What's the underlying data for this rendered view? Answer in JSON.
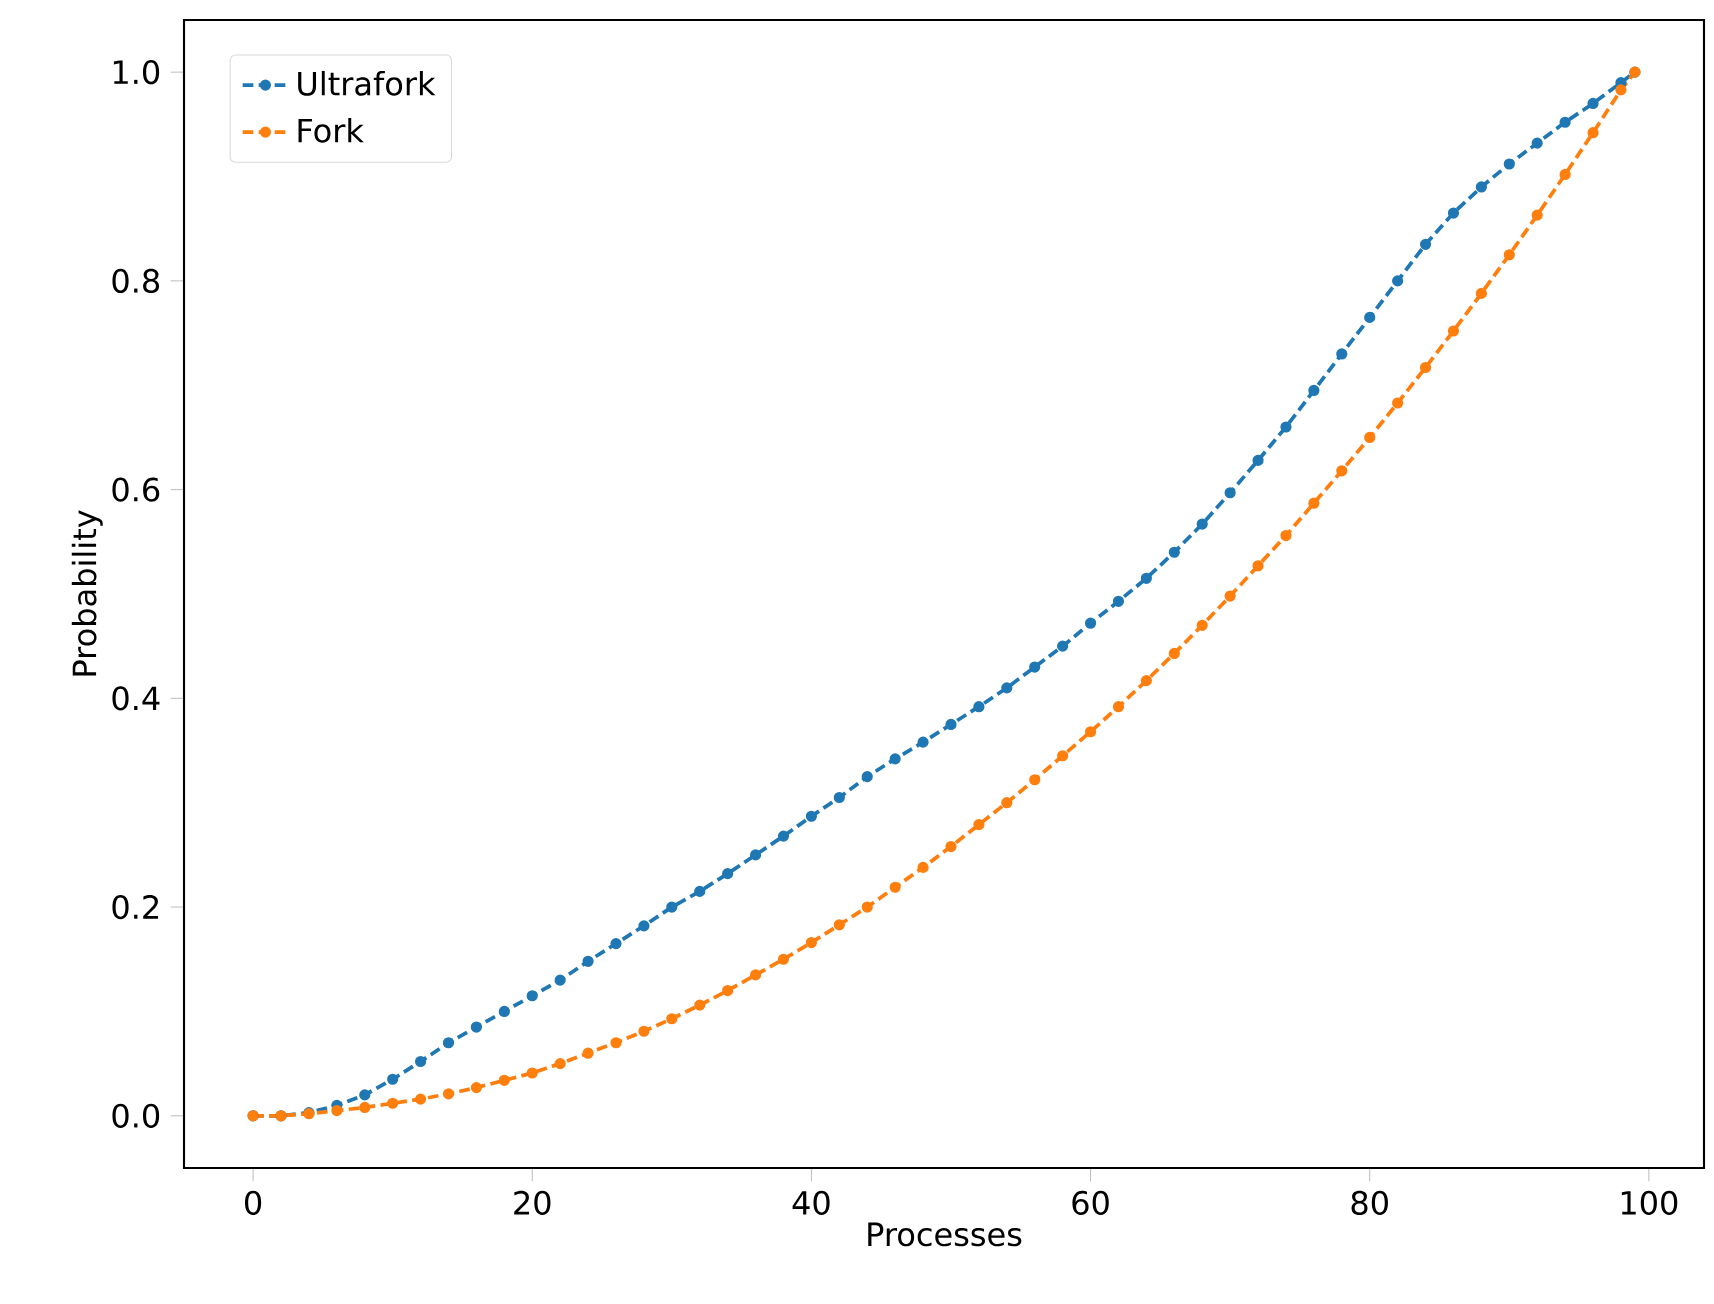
{
  "chart_data": {
    "type": "line",
    "xlabel": "Processes",
    "ylabel": "Probability",
    "x": [
      0,
      2,
      4,
      6,
      8,
      10,
      12,
      14,
      16,
      18,
      20,
      22,
      24,
      26,
      28,
      30,
      32,
      34,
      36,
      38,
      40,
      42,
      44,
      46,
      48,
      50,
      52,
      54,
      56,
      58,
      60,
      62,
      64,
      66,
      68,
      70,
      72,
      74,
      76,
      78,
      80,
      82,
      84,
      86,
      88,
      90,
      92,
      94,
      96,
      98,
      99
    ],
    "series": [
      {
        "name": "Ultrafork",
        "color": "#1f77b4",
        "values": [
          0,
          0,
          0.003,
          0.01,
          0.02,
          0.035,
          0.052,
          0.07,
          0.085,
          0.1,
          0.115,
          0.13,
          0.148,
          0.165,
          0.182,
          0.2,
          0.215,
          0.232,
          0.25,
          0.268,
          0.287,
          0.305,
          0.325,
          0.342,
          0.358,
          0.375,
          0.392,
          0.41,
          0.43,
          0.45,
          0.472,
          0.493,
          0.515,
          0.54,
          0.567,
          0.597,
          0.628,
          0.66,
          0.695,
          0.73,
          0.765,
          0.8,
          0.835,
          0.865,
          0.89,
          0.912,
          0.932,
          0.952,
          0.97,
          0.99,
          1.0
        ]
      },
      {
        "name": "Fork",
        "color": "#ff7f0e",
        "values": [
          0,
          0,
          0.002,
          0.005,
          0.008,
          0.012,
          0.016,
          0.021,
          0.027,
          0.034,
          0.041,
          0.05,
          0.06,
          0.07,
          0.081,
          0.093,
          0.106,
          0.12,
          0.135,
          0.15,
          0.166,
          0.183,
          0.2,
          0.219,
          0.238,
          0.258,
          0.279,
          0.3,
          0.322,
          0.345,
          0.368,
          0.392,
          0.417,
          0.443,
          0.47,
          0.498,
          0.527,
          0.556,
          0.587,
          0.618,
          0.65,
          0.683,
          0.717,
          0.752,
          0.788,
          0.825,
          0.863,
          0.902,
          0.942,
          0.983,
          1.0
        ]
      }
    ],
    "xlim": [
      -4.95,
      103.95
    ],
    "ylim": [
      -0.05,
      1.05
    ],
    "xticks": [
      0,
      20,
      40,
      60,
      80,
      100
    ],
    "yticks": [
      {
        "value": 0,
        "label": "0.0"
      },
      {
        "value": 0.2,
        "label": "0.2"
      },
      {
        "value": 0.4,
        "label": "0.4"
      },
      {
        "value": 0.6,
        "label": "0.6"
      },
      {
        "value": 0.8,
        "label": "0.8"
      },
      {
        "value": 1.0,
        "label": "1.0"
      }
    ],
    "legend": "top left",
    "marker": "circle",
    "line_style": "dashed",
    "grid": false
  }
}
